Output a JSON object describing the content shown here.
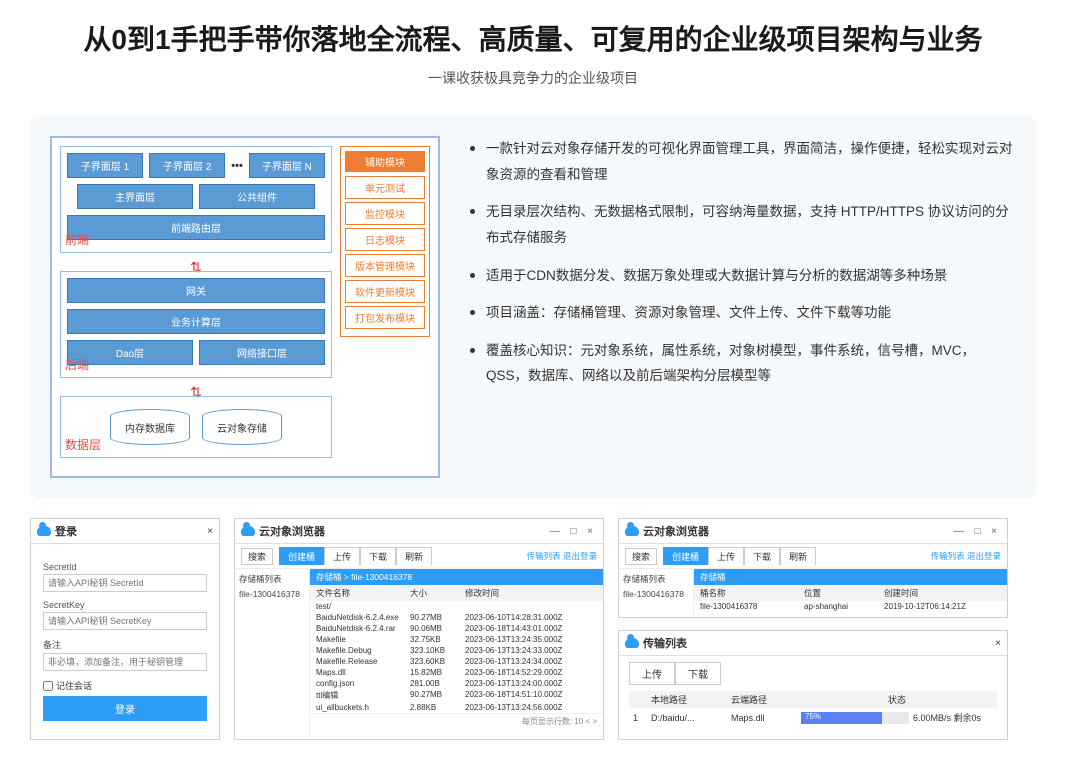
{
  "hero": {
    "title": "从0到1手把手带你落地全流程、高质量、可复用的企业级项目架构与业务",
    "subtitle": "一课收获极具竞争力的企业级项目"
  },
  "arch": {
    "frontend": {
      "label": "前端",
      "row1": [
        "子界面层 1",
        "子界面层 2",
        "子界面层 N"
      ],
      "row2": [
        "主界面层",
        "公共组件"
      ],
      "row3": "前端路由层"
    },
    "backend": {
      "label": "后端",
      "rows": [
        "网关",
        "业务计算层"
      ],
      "split": [
        "Dao层",
        "网络接口层"
      ]
    },
    "data": {
      "label": "数据层",
      "items": [
        "内存数据库",
        "云对象存储"
      ]
    },
    "aux": {
      "title": "辅助模块",
      "items": [
        "单元测试",
        "监控模块",
        "日志模块",
        "版本管理模块",
        "软件更新模块",
        "打包发布模块"
      ]
    }
  },
  "bullets": [
    "一款针对云对象存储开发的可视化界面管理工具，界面简洁，操作便捷，轻松实现对云对象资源的查看和管理",
    "无目录层次结构、无数据格式限制，可容纳海量数据，支持 HTTP/HTTPS 协议访问的分布式存储服务",
    "适用于CDN数据分发、数据万象处理或大数据计算与分析的数据湖等多种场景",
    "项目涵盖：存储桶管理、资源对象管理、文件上传、文件下载等功能",
    "覆盖核心知识：元对象系统，属性系统，对象树模型，事件系统，信号槽，MVC，QSS，数据库、网络以及前后端架构分层模型等"
  ],
  "login": {
    "title": "登录",
    "close": "×",
    "secretid_lbl": "SecretId",
    "secretid_ph": "请输入API秘钥 SecretId",
    "secretkey_lbl": "SecretKey",
    "secretkey_ph": "请输入API秘钥 SecretKey",
    "remark_lbl": "备注",
    "remark_ph": "非必填，添加备注，用于秘钥管理",
    "remember": "记住会话",
    "btn": "登录"
  },
  "browser": {
    "title": "云对象浏览器",
    "winbtns": "— □ ×",
    "search": "搜索",
    "tabs": [
      "创建桶",
      "上传",
      "下载",
      "刷新"
    ],
    "links": "传输列表  退出登录",
    "side_lbl": "存储桶列表",
    "bucket": "file-1300416378",
    "crumb": "存储桶  > file-1300416378",
    "cols": [
      "文件名称",
      "大小",
      "修改时间"
    ],
    "rows": [
      [
        "test/",
        "",
        ""
      ],
      [
        "BaiduNetdisk-6.2.4.exe",
        "90.27MB",
        "2023-06-10T14:28:31.000Z"
      ],
      [
        "BaiduNetdisk-6.2.4.rar",
        "90.06MB",
        "2023-06-18T14:43:01.000Z"
      ],
      [
        "Makefile",
        "32.75KB",
        "2023-06-13T13:24:35.000Z"
      ],
      [
        "Makefile.Debug",
        "323.10KB",
        "2023-06-13T13:24:33.000Z"
      ],
      [
        "Makefile.Release",
        "323.60KB",
        "2023-06-13T13:24:34.000Z"
      ],
      [
        "Maps.dll",
        "15.82MB",
        "2023-06-18T14:52:29.000Z"
      ],
      [
        "config.json",
        "281.00B",
        "2023-06-13T13:24:00.000Z"
      ],
      [
        "ttl编辑",
        "90.27MB",
        "2023-06-18T14:51:10.000Z"
      ],
      [
        "ui_allbuckets.h",
        "2.88KB",
        "2023-06-13T13:24:56.000Z"
      ]
    ],
    "pager": "每页显示行数: 10  <  >"
  },
  "browser2": {
    "title": "云对象浏览器",
    "winbtns": "— □ ×",
    "search": "搜索",
    "tabs": [
      "创建桶",
      "上传",
      "下载",
      "刷新"
    ],
    "links": "传输列表  退出登录",
    "side_lbl": "存储桶列表",
    "bucket": "file-1300416378",
    "crumb": "存储桶",
    "cols": [
      "桶名称",
      "位置",
      "创建时间"
    ],
    "rows": [
      [
        "file-1300416378",
        "ap-shanghai",
        "2019-10-12T06:14:21Z"
      ]
    ]
  },
  "queue": {
    "title": "传输列表",
    "close": "×",
    "tabs": [
      "上传",
      "下载"
    ],
    "cols": [
      "",
      "本地路径",
      "云端路径",
      "状态"
    ],
    "row": {
      "idx": "1",
      "local": "D:/baidu/...",
      "remote": "Maps.dll",
      "pct": 75,
      "pct_txt": "75%",
      "speed": "6.00MB/s 剩余0s"
    },
    "bar_color": "#5b7ff5"
  }
}
